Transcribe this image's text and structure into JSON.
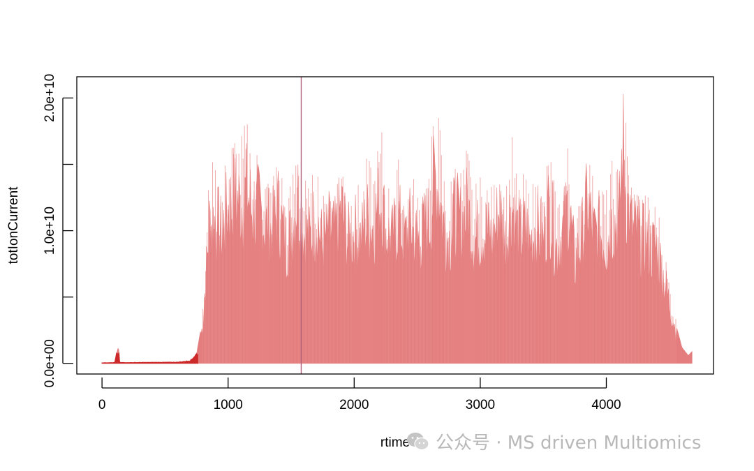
{
  "chart_data": {
    "type": "area",
    "xlabel": "rtime",
    "ylabel": "totIonCurrent",
    "xlim": [
      -200,
      4850
    ],
    "ylim": [
      -800000000,
      21600000000
    ],
    "x_ticks": [
      0,
      1000,
      2000,
      3000,
      4000
    ],
    "x_tick_labels": [
      "0",
      "1000",
      "2000",
      "3000",
      "4000"
    ],
    "y_ticks": [
      0,
      5000000000,
      10000000000,
      15000000000,
      20000000000
    ],
    "y_tick_labels": [
      "0.0e+00",
      "",
      "1.0e+10",
      "",
      "2.0e+10"
    ],
    "grid": false,
    "fill_color": "#e27070",
    "low_color": "#cc2a2a",
    "vline": {
      "x": 1580,
      "color": "#b0607a"
    },
    "series": [
      {
        "x": [
          0,
          100,
          130,
          140,
          200,
          400,
          600,
          700,
          750,
          800,
          850,
          900,
          950,
          1000,
          1050,
          1100,
          1150,
          1200,
          1250,
          1300,
          1350,
          1400,
          1450,
          1500,
          1550,
          1600,
          1650,
          1700,
          1750,
          1800,
          1850,
          1900,
          1950,
          2000,
          2050,
          2100,
          2150,
          2200,
          2220,
          2250,
          2300,
          2350,
          2400,
          2450,
          2500,
          2550,
          2600,
          2640,
          2680,
          2700,
          2750,
          2800,
          2850,
          2900,
          2950,
          3000,
          3050,
          3100,
          3150,
          3200,
          3250,
          3300,
          3350,
          3400,
          3450,
          3500,
          3550,
          3600,
          3650,
          3700,
          3750,
          3800,
          3850,
          3900,
          3950,
          4000,
          4050,
          4100,
          4130,
          4160,
          4200,
          4250,
          4300,
          4350,
          4400,
          4450,
          4500,
          4550,
          4600,
          4650,
          4680
        ],
        "y": [
          50000000,
          60000000,
          1300000000,
          70000000,
          60000000,
          80000000,
          90000000,
          200000000,
          700000000,
          3500000000,
          12500000000,
          13000000000,
          11500000000,
          14000000000,
          15000000000,
          14500000000,
          15500000000,
          13500000000,
          14000000000,
          12500000000,
          12000000000,
          14000000000,
          11000000000,
          11500000000,
          15500000000,
          12000000000,
          11000000000,
          13500000000,
          10500000000,
          12000000000,
          11500000000,
          14000000000,
          11000000000,
          12000000000,
          11000000000,
          13000000000,
          12500000000,
          14500000000,
          15000000000,
          12000000000,
          11000000000,
          13000000000,
          11000000000,
          12500000000,
          11000000000,
          12000000000,
          13000000000,
          17000000000,
          15500000000,
          13000000000,
          11000000000,
          13500000000,
          12500000000,
          14000000000,
          11000000000,
          12000000000,
          12000000000,
          11000000000,
          14000000000,
          11000000000,
          14500000000,
          11500000000,
          12000000000,
          11000000000,
          12500000000,
          11000000000,
          14500000000,
          10500000000,
          11500000000,
          14500000000,
          9000000000,
          11000000000,
          14500000000,
          11500000000,
          12000000000,
          11000000000,
          13000000000,
          12500000000,
          20000000000,
          15000000000,
          12000000000,
          11500000000,
          11000000000,
          10500000000,
          10500000000,
          8000000000,
          5500000000,
          3000000000,
          1200000000,
          600000000,
          900000000
        ]
      }
    ]
  },
  "watermark": {
    "icon": "wechat-icon",
    "text": "公众号 · MS driven Multiomics"
  }
}
